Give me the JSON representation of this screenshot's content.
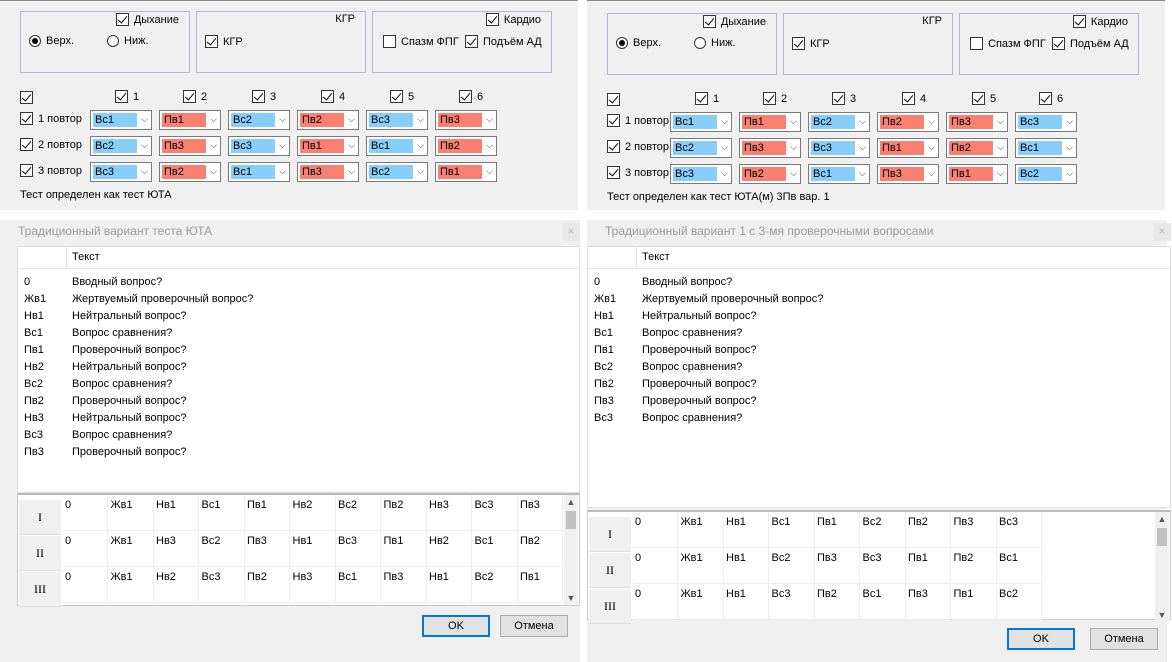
{
  "group_labels": {
    "breath": "Дыхание",
    "kgr_title": "КГР",
    "kgr": "КГР",
    "cardio": "Кардио",
    "upper": "Верх.",
    "lower": "Ниж.",
    "spasm": "Спазм ФПГ",
    "bp_rise": "Подъём АД"
  },
  "column_labels": [
    "1",
    "2",
    "3",
    "4",
    "5",
    "6"
  ],
  "buttons": {
    "ok": "OK",
    "cancel": "Отмена"
  },
  "list_header": "Текст",
  "close_glyph": "×",
  "colors": {
    "comparison": "#87cefa",
    "test": "#fa8072"
  },
  "panels": [
    {
      "repeats": [
        {
          "label": "1 повтор",
          "values": [
            "Вс1",
            "Пв1",
            "Вс2",
            "Пв2",
            "Вс3",
            "Пв3"
          ]
        },
        {
          "label": "2 повтор",
          "values": [
            "Вс2",
            "Пв3",
            "Вс3",
            "Пв1",
            "Вс1",
            "Пв2"
          ]
        },
        {
          "label": "3 повтор",
          "values": [
            "Вс3",
            "Пв2",
            "Вс1",
            "Пв3",
            "Вс2",
            "Пв1"
          ]
        }
      ],
      "status": "Тест определен как тест ЮТА",
      "dialog_title": "Традиционный вариант теста ЮТА",
      "questions": [
        {
          "code": "0",
          "text": "Вводный вопрос?"
        },
        {
          "code": "Жв1",
          "text": "Жертвуемый проверочный вопрос?"
        },
        {
          "code": "Нв1",
          "text": "Нейтральный вопрос?"
        },
        {
          "code": "Вс1",
          "text": "Вопрос сравнения?"
        },
        {
          "code": "Пв1",
          "text": "Проверочный вопрос?"
        },
        {
          "code": "Нв2",
          "text": "Нейтральный вопрос?"
        },
        {
          "code": "Вс2",
          "text": "Вопрос сравнения?"
        },
        {
          "code": "Пв2",
          "text": "Проверочный вопрос?"
        },
        {
          "code": "Нв3",
          "text": "Нейтральный вопрос?"
        },
        {
          "code": "Вс3",
          "text": "Вопрос сравнения?"
        },
        {
          "code": "Пв3",
          "text": "Проверочный вопрос?"
        }
      ],
      "grid": [
        {
          "label": "I",
          "cells": [
            "0",
            "Жв1",
            "Нв1",
            "Вс1",
            "Пв1",
            "Нв2",
            "Вс2",
            "Пв2",
            "Нв3",
            "Вс3",
            "Пв3"
          ]
        },
        {
          "label": "II",
          "cells": [
            "0",
            "Жв1",
            "Нв3",
            "Вс2",
            "Пв3",
            "Нв1",
            "Вс3",
            "Пв1",
            "Нв2",
            "Вс1",
            "Пв2"
          ]
        },
        {
          "label": "III",
          "cells": [
            "0",
            "Жв1",
            "Нв2",
            "Вс3",
            "Пв2",
            "Нв3",
            "Вс1",
            "Пв3",
            "Нв1",
            "Вс2",
            "Пв1"
          ]
        }
      ]
    },
    {
      "repeats": [
        {
          "label": "1 повтор",
          "values": [
            "Вс1",
            "Пв1",
            "Вс2",
            "Пв2",
            "Пв3",
            "Вс3"
          ]
        },
        {
          "label": "2 повтор",
          "values": [
            "Вс2",
            "Пв3",
            "Вс3",
            "Пв1",
            "Пв2",
            "Вс1"
          ]
        },
        {
          "label": "3 повтор",
          "values": [
            "Вс3",
            "Пв2",
            "Вс1",
            "Пв3",
            "Пв1",
            "Вс2"
          ]
        }
      ],
      "status": "Тест определен как тест ЮТА(м) 3Пв вар. 1",
      "dialog_title": "Традиционный вариант 1  с 3-мя проверочными вопросами",
      "questions": [
        {
          "code": "0",
          "text": "Вводный вопрос?"
        },
        {
          "code": "Жв1",
          "text": "Жертвуемый проверочный вопрос?"
        },
        {
          "code": "Нв1",
          "text": "Нейтральный вопрос?"
        },
        {
          "code": "Вс1",
          "text": "Вопрос сравнения?"
        },
        {
          "code": "Пв1",
          "text": "Проверочный вопрос?"
        },
        {
          "code": "Вс2",
          "text": "Вопрос сравнения?"
        },
        {
          "code": "Пв2",
          "text": "Проверочный вопрос?"
        },
        {
          "code": "Пв3",
          "text": "Проверочный вопрос?"
        },
        {
          "code": "Вс3",
          "text": "Вопрос сравнения?"
        }
      ],
      "grid": [
        {
          "label": "I",
          "cells": [
            "0",
            "Жв1",
            "Нв1",
            "Вс1",
            "Пв1",
            "Вс2",
            "Пв2",
            "Пв3",
            "Вс3"
          ]
        },
        {
          "label": "II",
          "cells": [
            "0",
            "Жв1",
            "Нв1",
            "Вс2",
            "Пв3",
            "Вс3",
            "Пв1",
            "Пв2",
            "Вс1"
          ]
        },
        {
          "label": "III",
          "cells": [
            "0",
            "Жв1",
            "Нв1",
            "Вс3",
            "Пв2",
            "Вс1",
            "Пв3",
            "Пв1",
            "Вс2"
          ]
        }
      ]
    }
  ]
}
